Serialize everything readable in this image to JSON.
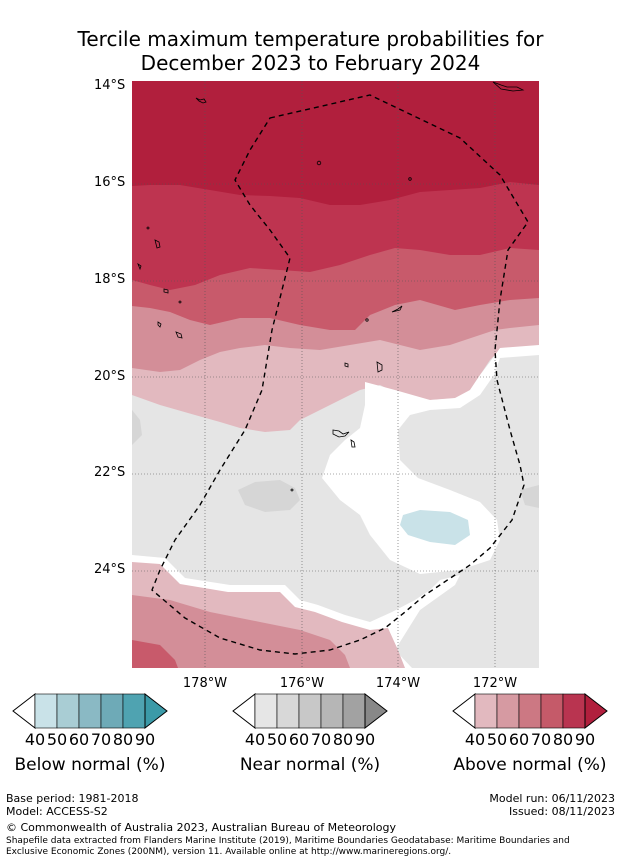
{
  "title": {
    "line1": "Tercile maximum temperature probabilities for",
    "line2": "December 2023 to February 2024"
  },
  "map": {
    "lat_labels": [
      "14°S",
      "16°S",
      "18°S",
      "20°S",
      "22°S",
      "24°S"
    ],
    "lon_labels": [
      "178°W",
      "176°W",
      "174°W",
      "172°W"
    ],
    "colors": {
      "above_90": "#b11f3d",
      "above_80": "#be3450",
      "above_70": "#c85a6b",
      "above_60": "#d38e98",
      "above_50": "#e2b9bf",
      "near": "#e5e5e5",
      "near_50": "#d6d6d6",
      "below_50": "#c9e2e8",
      "neutral": "#ffffff"
    }
  },
  "legends": [
    {
      "label": "Below normal (%)",
      "ticks": [
        "40",
        "50",
        "60",
        "70",
        "80",
        "90"
      ],
      "colors": [
        "#c9e2e8",
        "#a9cdd4",
        "#8ab9c4",
        "#6eaab7",
        "#4fa3b1",
        "#3b9aa8"
      ]
    },
    {
      "label": "Near normal (%)",
      "ticks": [
        "40",
        "50",
        "60",
        "70",
        "80",
        "90"
      ],
      "colors": [
        "#e6e6e6",
        "#d8d8d8",
        "#c8c8c8",
        "#b6b6b6",
        "#a2a2a2",
        "#888888"
      ]
    },
    {
      "label": "Above normal (%)",
      "ticks": [
        "40",
        "50",
        "60",
        "70",
        "80",
        "90"
      ],
      "colors": [
        "#e2b9bf",
        "#d69aa2",
        "#cc7883",
        "#c55a69",
        "#b93450",
        "#b11f3d"
      ]
    }
  ],
  "footer": {
    "base_period": "Base period: 1981-2018",
    "model": "Model: ACCESS-S2",
    "model_run": "Model run: 06/11/2023",
    "issued": "Issued: 08/11/2023",
    "copyright": "© Commonwealth of Australia 2023, Australian Bureau of Meteorology",
    "shapefile_line1": "Shapefile data extracted from Flanders Marine Institute (2019), Maritime Boundaries Geodatabase: Maritime Boundaries and",
    "shapefile_line2": "Exclusive Economic Zones (200NM), version 11. Available online at http://www.marineregions.org/."
  }
}
